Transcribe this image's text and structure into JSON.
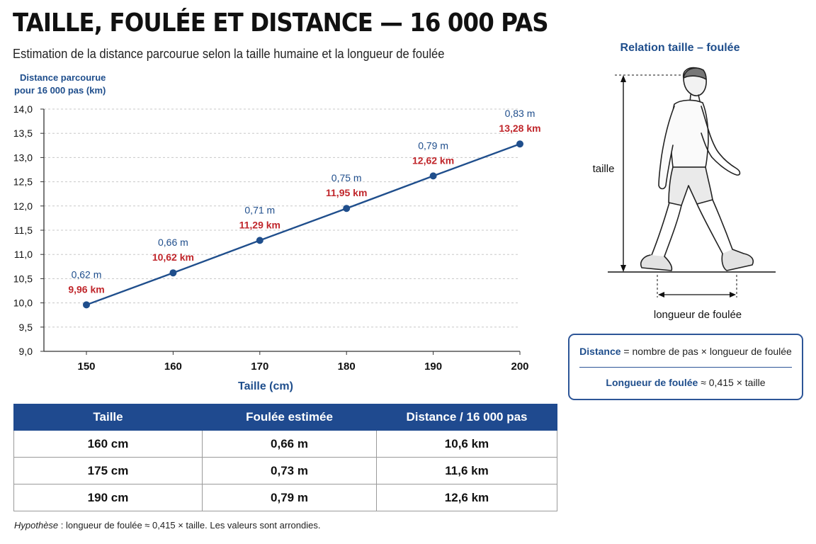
{
  "title": "TAILLE, FOULÉE ET DISTANCE — 16 000 PAS",
  "subtitle": "Estimation de la distance parcourue selon la taille humaine et la longueur de foulée",
  "chart_data": {
    "type": "line",
    "ylabel_lines": [
      "Distance parcourue",
      "pour 16 000 pas (km)"
    ],
    "xlabel": "Taille (cm)",
    "x": [
      150,
      160,
      170,
      180,
      190,
      200
    ],
    "xlim": [
      150,
      200
    ],
    "ylim": [
      9.0,
      14.0
    ],
    "y_ticks": [
      "9,0",
      "9,5",
      "10,0",
      "10,5",
      "11,0",
      "11,5",
      "12,0",
      "12,5",
      "13,0",
      "13,5",
      "14,0"
    ],
    "x_ticks": [
      "150",
      "160",
      "170",
      "180",
      "190",
      "200"
    ],
    "grid": "horizontal-dashed",
    "series": [
      {
        "values": [
          9.96,
          10.62,
          11.29,
          11.95,
          12.62,
          13.28
        ],
        "foulee_labels": [
          "0,62 m",
          "0,66 m",
          "0,71 m",
          "0,75 m",
          "0,79 m",
          "0,83 m"
        ],
        "distance_labels": [
          "9,96 km",
          "10,62 km",
          "11,29 km",
          "11,95 km",
          "12,62 km",
          "13,28 km"
        ],
        "color": "#1f4e8c",
        "label_color_foulee": "#1f4e8c",
        "label_color_distance": "#c0262b"
      }
    ]
  },
  "figure": {
    "title": "Relation taille – foulée",
    "height_label": "taille",
    "stride_label": "longueur de foulée"
  },
  "formulas": {
    "line1_term": "Distance",
    "line1_rest": " = nombre de pas × longueur de foulée",
    "line2_term": "Longueur de foulée",
    "line2_rest": " ≈ 0,415 × taille"
  },
  "table": {
    "headers": [
      "Taille",
      "Foulée  estimée",
      "Distance / 16 000 pas"
    ],
    "rows": [
      [
        "160 cm",
        "0,66 m",
        "10,6 km"
      ],
      [
        "175 cm",
        "0,73 m",
        "11,6 km"
      ],
      [
        "190 cm",
        "0,79 m",
        "12,6 km"
      ]
    ]
  },
  "footnote": {
    "label": "Hypothèse",
    "text": " : longueur de foulée ≈ 0,415 × taille. Les valeurs sont arrondies."
  }
}
